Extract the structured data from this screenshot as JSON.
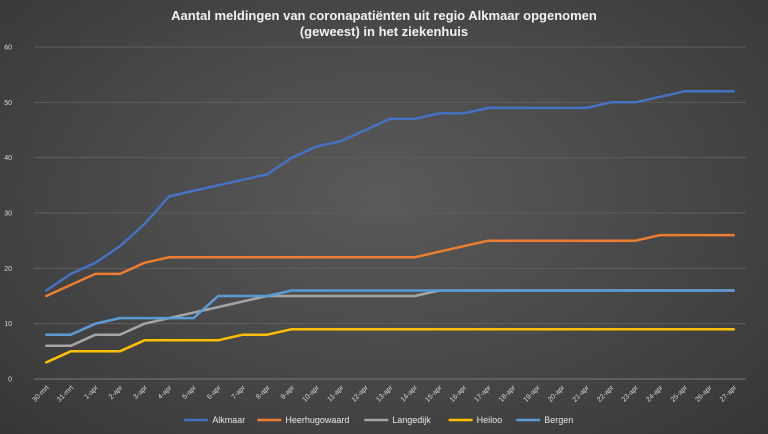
{
  "chart_data": {
    "type": "line",
    "title_lines": [
      "Aantal meldingen van coronapatiënten uit regio Alkmaar opgenomen",
      "(geweest) in het ziekenhuis"
    ],
    "categories": [
      "30-mrt",
      "31-mrt",
      "1-apr",
      "2-apr",
      "3-apr",
      "4-apr",
      "5-apr",
      "6-apr",
      "7-apr",
      "8-apr",
      "9-apr",
      "10-apr",
      "11-apr",
      "12-apr",
      "13-apr",
      "14-apr",
      "15-apr",
      "16-apr",
      "17-apr",
      "18-apr",
      "19-apr",
      "20-apr",
      "21-apr",
      "22-apr",
      "23-apr",
      "24-apr",
      "25-apr",
      "26-apr",
      "27-apr"
    ],
    "y_ticks": [
      0,
      10,
      20,
      30,
      40,
      50,
      60
    ],
    "ylim": [
      0,
      60
    ],
    "grid": true,
    "legend_position": "bottom",
    "series": [
      {
        "name": "Alkmaar",
        "color": "#4472c4",
        "values": [
          16,
          19,
          21,
          24,
          28,
          33,
          34,
          35,
          36,
          37,
          40,
          42,
          43,
          45,
          47,
          47,
          48,
          48,
          49,
          49,
          49,
          49,
          49,
          50,
          50,
          51,
          52,
          52,
          52
        ]
      },
      {
        "name": "Heerhugowaard",
        "color": "#ed7d31",
        "values": [
          15,
          17,
          19,
          19,
          21,
          22,
          22,
          22,
          22,
          22,
          22,
          22,
          22,
          22,
          22,
          22,
          23,
          24,
          25,
          25,
          25,
          25,
          25,
          25,
          25,
          26,
          26,
          26,
          26
        ]
      },
      {
        "name": "Langedijk",
        "color": "#a5a5a5",
        "values": [
          6,
          6,
          8,
          8,
          10,
          11,
          12,
          13,
          14,
          15,
          15,
          15,
          15,
          15,
          15,
          15,
          16,
          16,
          16,
          16,
          16,
          16,
          16,
          16,
          16,
          16,
          16,
          16,
          16
        ]
      },
      {
        "name": "Heiloo",
        "color": "#ffc000",
        "values": [
          3,
          5,
          5,
          5,
          7,
          7,
          7,
          7,
          8,
          8,
          9,
          9,
          9,
          9,
          9,
          9,
          9,
          9,
          9,
          9,
          9,
          9,
          9,
          9,
          9,
          9,
          9,
          9,
          9
        ]
      },
      {
        "name": "Bergen",
        "color": "#5b9bd5",
        "values": [
          8,
          8,
          10,
          11,
          11,
          11,
          11,
          15,
          15,
          15,
          16,
          16,
          16,
          16,
          16,
          16,
          16,
          16,
          16,
          16,
          16,
          16,
          16,
          16,
          16,
          16,
          16,
          16,
          16
        ]
      }
    ]
  }
}
